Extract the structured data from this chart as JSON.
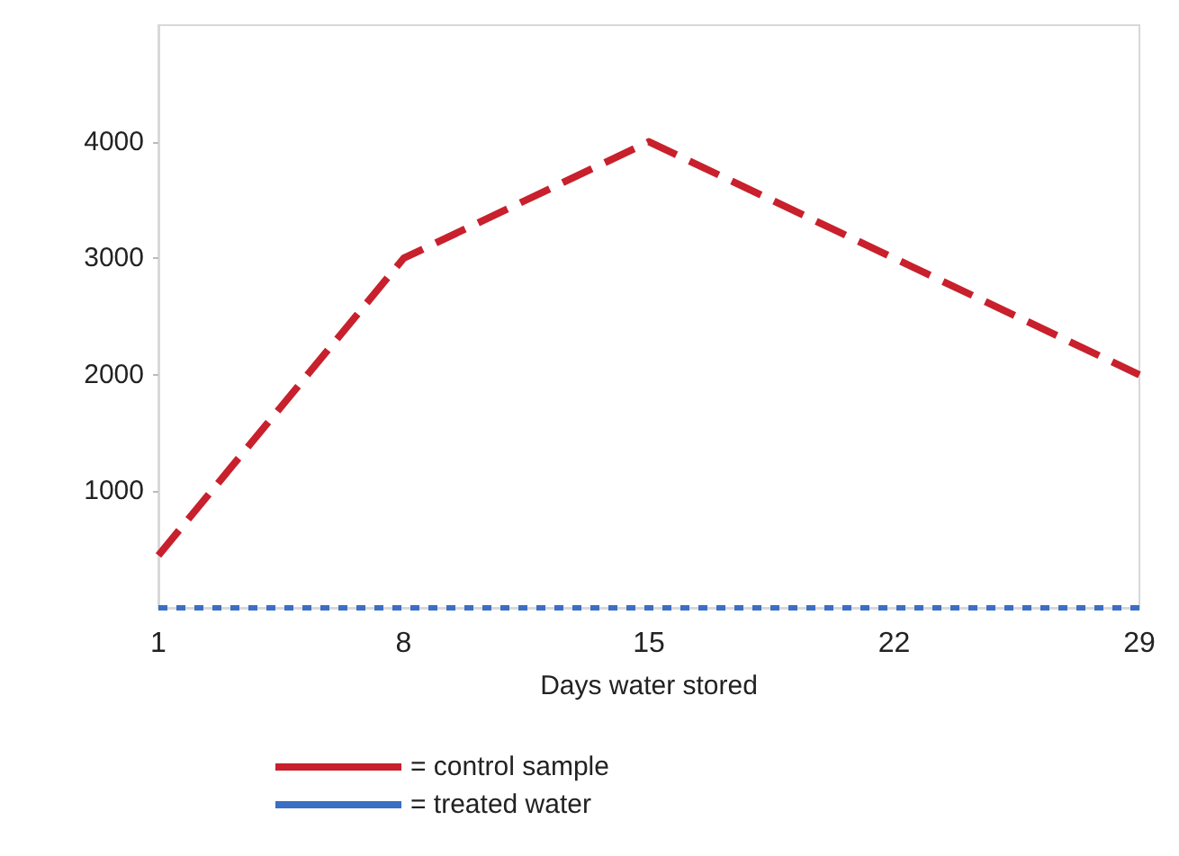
{
  "chart_data": {
    "type": "line",
    "xlabel": "Days water stored",
    "x": [
      1,
      8,
      15,
      22,
      29
    ],
    "series": [
      {
        "name": "= control sample",
        "color": "#c8202c",
        "line_style": "dashed",
        "values": [
          450,
          3000,
          4000,
          3000,
          2000
        ]
      },
      {
        "name": "= treated water",
        "color": "#3a6fc4",
        "line_style": "dotted",
        "values": [
          0,
          0,
          0,
          0,
          0
        ]
      }
    ],
    "xlim": [
      1,
      29
    ],
    "xticks": [
      1,
      8,
      15,
      22,
      29
    ],
    "ylim": [
      0,
      5000
    ],
    "yticks": [
      1000,
      2000,
      3000,
      4000
    ],
    "grid": false,
    "legend": "bottom",
    "marker": "none"
  }
}
